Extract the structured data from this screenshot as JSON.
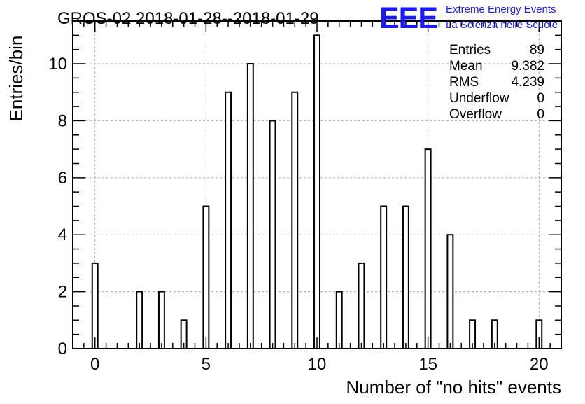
{
  "header": {
    "title": "GROS-02 2018-01-28--2018-01-29",
    "logo_text": "EEE",
    "logo_line1": "Extreme Energy Events",
    "logo_line2": "La Scienza nelle Scuole",
    "logo_color": "#1a1aff"
  },
  "stats": [
    {
      "label": "Entries",
      "value": "89"
    },
    {
      "label": "Mean",
      "value": "9.382"
    },
    {
      "label": "RMS",
      "value": "4.239"
    },
    {
      "label": "Underflow",
      "value": "0"
    },
    {
      "label": "Overflow",
      "value": "0"
    }
  ],
  "chart_data": {
    "type": "bar",
    "title": "GROS-02 2018-01-28--2018-01-29",
    "xlabel": "Number of \"no hits\" events",
    "ylabel": "Entries/bin",
    "xlim": [
      -1,
      21
    ],
    "ylim": [
      0,
      11.5
    ],
    "xticks": [
      0,
      5,
      10,
      15,
      20
    ],
    "yticks": [
      0,
      2,
      4,
      6,
      8,
      10
    ],
    "grid": true,
    "bar_width": 0.25,
    "bars": [
      {
        "x": 0,
        "value": 3
      },
      {
        "x": 2,
        "value": 2
      },
      {
        "x": 3,
        "value": 2
      },
      {
        "x": 4,
        "value": 1
      },
      {
        "x": 5,
        "value": 5
      },
      {
        "x": 6,
        "value": 9
      },
      {
        "x": 7,
        "value": 10
      },
      {
        "x": 8,
        "value": 8
      },
      {
        "x": 9,
        "value": 9
      },
      {
        "x": 10,
        "value": 11
      },
      {
        "x": 11,
        "value": 2
      },
      {
        "x": 12,
        "value": 3
      },
      {
        "x": 13,
        "value": 5
      },
      {
        "x": 14,
        "value": 5
      },
      {
        "x": 15,
        "value": 7
      },
      {
        "x": 16,
        "value": 4
      },
      {
        "x": 17,
        "value": 1
      },
      {
        "x": 18,
        "value": 1
      },
      {
        "x": 20,
        "value": 1
      }
    ]
  }
}
